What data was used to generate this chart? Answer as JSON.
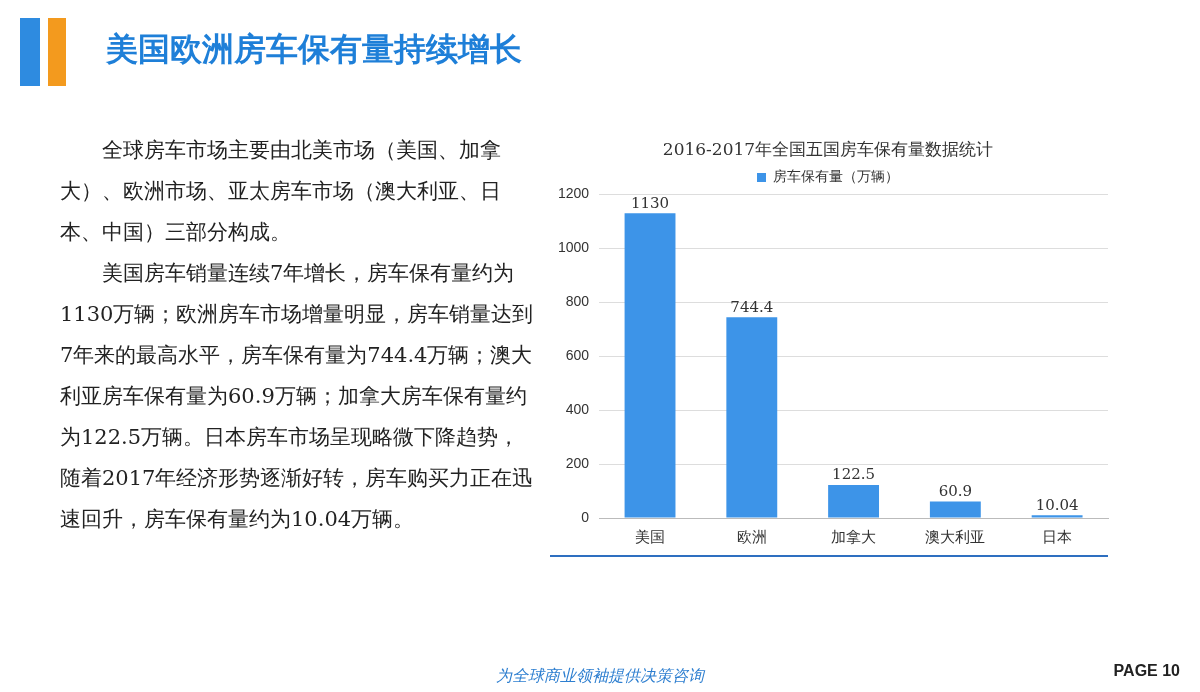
{
  "chart_data": {
    "type": "bar",
    "title": "美国欧洲房车保有量持续增长",
    "subtitle": "2016-2017年全国五国房车保有量数据统计",
    "categories": [
      "美国",
      "欧洲",
      "加拿大",
      "澳大利亚",
      "日本"
    ],
    "series": [
      {
        "name": "房车保有量（万辆）",
        "color": "#3d94e8",
        "values": [
          1130,
          744.4,
          122.5,
          60.9,
          10.04
        ]
      }
    ],
    "ylim": [
      0,
      1200
    ],
    "yticks": [
      0,
      200,
      400,
      600,
      800,
      1000,
      1200
    ],
    "grid": "y",
    "legend": "top",
    "data_labels": true,
    "annotations": [
      "全球房车市场主要由北美市场（美国、加拿大）、欧洲市场、亚太房车市场（澳大利亚、日本、中国）三部分构成。",
      "美国房车销量连续7年增长，房车保有量约为1130万辆；欧洲房车市场增量明显，房车销量达到7年来的最高水平，房车保有量为744.4万辆；澳大利亚房车保有量为60.9万辆；加拿大房车保有量约为122.5万辆。日本房车市场呈现略微下降趋势，随着2017年经济形势逐渐好转，房车购买力正在迅速回升，房车保有量约为10.04万辆。",
      "为全球商业领袖提供决策咨询",
      "PAGE  10"
    ]
  }
}
